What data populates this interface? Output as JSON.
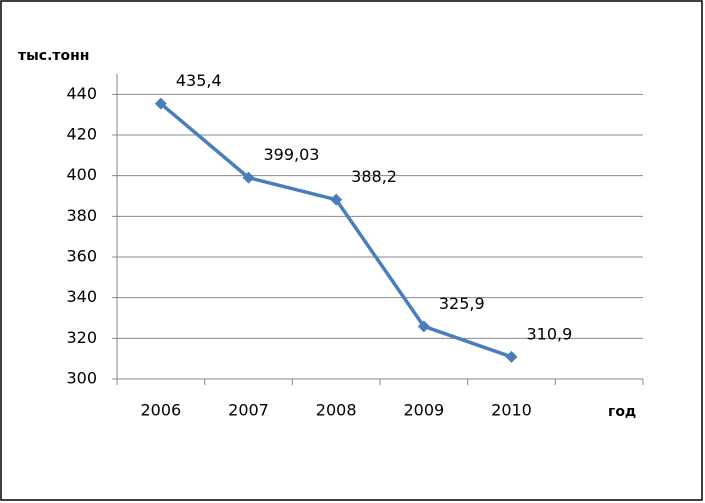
{
  "chart_data": {
    "type": "line",
    "y_axis_label": "тыс.тонн",
    "x_axis_label": "год",
    "categories": [
      "2006",
      "2007",
      "2008",
      "2009",
      "2010",
      null
    ],
    "series": [
      {
        "color": "#4a7ebb",
        "values": [
          435.4,
          399.03,
          388.2,
          325.9,
          310.9,
          null
        ],
        "value_labels": [
          "435,4",
          "399,03",
          "388,2",
          "325,9",
          "310,9",
          null
        ]
      }
    ],
    "ylim": [
      300,
      450
    ],
    "yticks": [
      300,
      320,
      340,
      360,
      380,
      400,
      420,
      440
    ],
    "grid": true
  }
}
